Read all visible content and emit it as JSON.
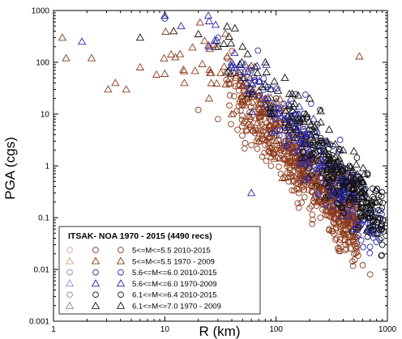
{
  "chart_data": {
    "type": "scatter",
    "x_scale": "log",
    "y_scale": "log",
    "xlim": [
      1,
      1000
    ],
    "ylim": [
      0.001,
      1000
    ],
    "xlabel": "R (km)",
    "ylabel": "PGA (cgs)",
    "x_tick_labels": [
      "1",
      "10",
      "100",
      "1000"
    ],
    "y_tick_labels": [
      "0.001",
      "0.01",
      "0.1",
      "1",
      "10",
      "100",
      "1000"
    ],
    "grid": false,
    "legend_position": "bottom-left",
    "legend_title": "ITSAK- NOA 1970 - 2015 (4490 recs)",
    "colors": {
      "brown": "#8B3A1A",
      "blue": "#2828A8",
      "black": "#111111"
    },
    "series": [
      {
        "name": "5<=M<=5.5   2010-2015",
        "marker": "circle",
        "color": "#8B3A1A",
        "light": "#D9A48E",
        "points": [
          [
            20,
            12
          ],
          [
            30,
            8
          ],
          [
            45,
            5
          ],
          [
            60,
            2.5
          ],
          [
            75,
            1.5
          ],
          [
            90,
            1
          ],
          [
            110,
            0.7
          ],
          [
            130,
            0.5
          ],
          [
            160,
            0.3
          ],
          [
            200,
            0.15
          ],
          [
            250,
            0.1
          ],
          [
            300,
            0.06
          ],
          [
            350,
            0.04
          ],
          [
            420,
            0.03
          ],
          [
            500,
            0.02
          ],
          [
            600,
            0.012
          ],
          [
            700,
            0.008
          ]
        ]
      },
      {
        "name": "5<=M<=5.5   1970 - 2009",
        "marker": "triangle",
        "color": "#8B3A1A",
        "light": "#D9A48E",
        "points": [
          [
            1.2,
            300
          ],
          [
            1.3,
            120
          ],
          [
            2.2,
            120
          ],
          [
            3.1,
            30
          ],
          [
            3.6,
            40
          ],
          [
            4.5,
            30
          ],
          [
            6,
            80
          ],
          [
            10,
            60
          ],
          [
            15,
            40
          ],
          [
            25,
            20
          ],
          [
            40,
            10
          ],
          [
            55,
            5
          ],
          [
            70,
            3
          ],
          [
            90,
            1.5
          ],
          [
            120,
            0.6
          ],
          [
            560,
            130
          ]
        ]
      },
      {
        "name": "5.6<=M<=6.0  2010-2015",
        "marker": "circle",
        "color": "#2828A8",
        "light": "#8C8CD8",
        "points": [
          [
            10,
            700
          ],
          [
            30,
            300
          ],
          [
            60,
            70
          ],
          [
            90,
            30
          ],
          [
            130,
            15
          ],
          [
            160,
            10
          ],
          [
            200,
            4
          ],
          [
            250,
            2
          ],
          [
            300,
            1
          ],
          [
            400,
            0.3
          ],
          [
            500,
            0.1
          ],
          [
            700,
            0.05
          ]
        ]
      },
      {
        "name": "5.6<=M<=6.0  1970-2009",
        "marker": "triangle",
        "color": "#2828A8",
        "light": "#8C8CD8",
        "points": [
          [
            1.8,
            250
          ],
          [
            10,
            800
          ],
          [
            14,
            500
          ],
          [
            25,
            200
          ],
          [
            40,
            100
          ],
          [
            60,
            40
          ],
          [
            60,
            0.3
          ],
          [
            80,
            20
          ],
          [
            120,
            8
          ],
          [
            180,
            3
          ],
          [
            250,
            1
          ],
          [
            350,
            0.3
          ],
          [
            500,
            0.06
          ]
        ]
      },
      {
        "name": "6.1<=M<=6.4  2010-2015",
        "marker": "circle",
        "color": "#111111",
        "light": "#888888",
        "points": [
          [
            100,
            20
          ],
          [
            150,
            10
          ],
          [
            200,
            5
          ],
          [
            250,
            3
          ],
          [
            300,
            1.5
          ],
          [
            400,
            0.7
          ],
          [
            500,
            0.3
          ],
          [
            700,
            0.1
          ],
          [
            900,
            0.03
          ]
        ]
      },
      {
        "name": "6.1<=M<=7.0  1970 - 2009",
        "marker": "triangle",
        "color": "#111111",
        "light": "#888888",
        "points": [
          [
            6,
            300
          ],
          [
            12,
            400
          ],
          [
            20,
            350
          ],
          [
            30,
            200
          ],
          [
            50,
            200
          ],
          [
            80,
            100
          ],
          [
            120,
            50
          ],
          [
            200,
            20
          ],
          [
            300,
            5
          ],
          [
            400,
            2
          ],
          [
            600,
            0.5
          ],
          [
            800,
            0.2
          ]
        ]
      }
    ]
  }
}
